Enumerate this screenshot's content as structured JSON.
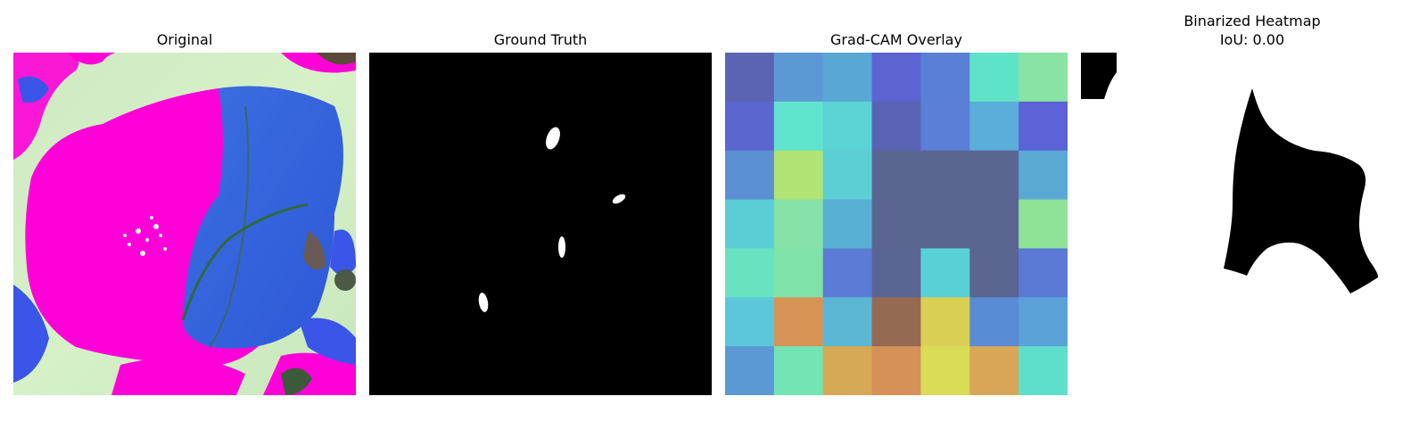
{
  "figure": {
    "panels": [
      {
        "title": "Original"
      },
      {
        "title": "Ground Truth"
      },
      {
        "title": "Grad-CAM Overlay"
      },
      {
        "title": "Binarized Heatmap",
        "subtitle": "IoU: 0.00"
      }
    ]
  },
  "gradcam_grid": {
    "rows": 7,
    "cols": 7,
    "colors": [
      [
        "#5b64b3",
        "#5b99d5",
        "#5aa6d4",
        "#5d63d3",
        "#5a7fd6",
        "#5ee3c8",
        "#89e3a2"
      ],
      [
        "#5b66cf",
        "#60e3cc",
        "#5ad3d4",
        "#5a62b4",
        "#5b7fd7",
        "#5aaed9",
        "#5b63d6"
      ],
      [
        "#5d8fd3",
        "#b1e274",
        "#5ccfd5",
        "#5a6592",
        "#5a6592",
        "#5a6592",
        "#5aa9d5"
      ],
      [
        "#5acdd6",
        "#86e2a8",
        "#58b0d5",
        "#5a6592",
        "#5a6592",
        "#5a6592",
        "#8ee396"
      ],
      [
        "#68e2bf",
        "#7fe3a9",
        "#5a7bd6",
        "#5a6593",
        "#59d0d7",
        "#5a6592",
        "#5b7ad6"
      ],
      [
        "#5bc7d9",
        "#d79356",
        "#5bb7d4",
        "#966953",
        "#d9cf55",
        "#5a8bd6",
        "#5aa2d7"
      ],
      [
        "#5b99d5",
        "#74e4b5",
        "#d6a955",
        "#d69158",
        "#d9dc56",
        "#d7a757",
        "#5ddfcc"
      ]
    ]
  }
}
